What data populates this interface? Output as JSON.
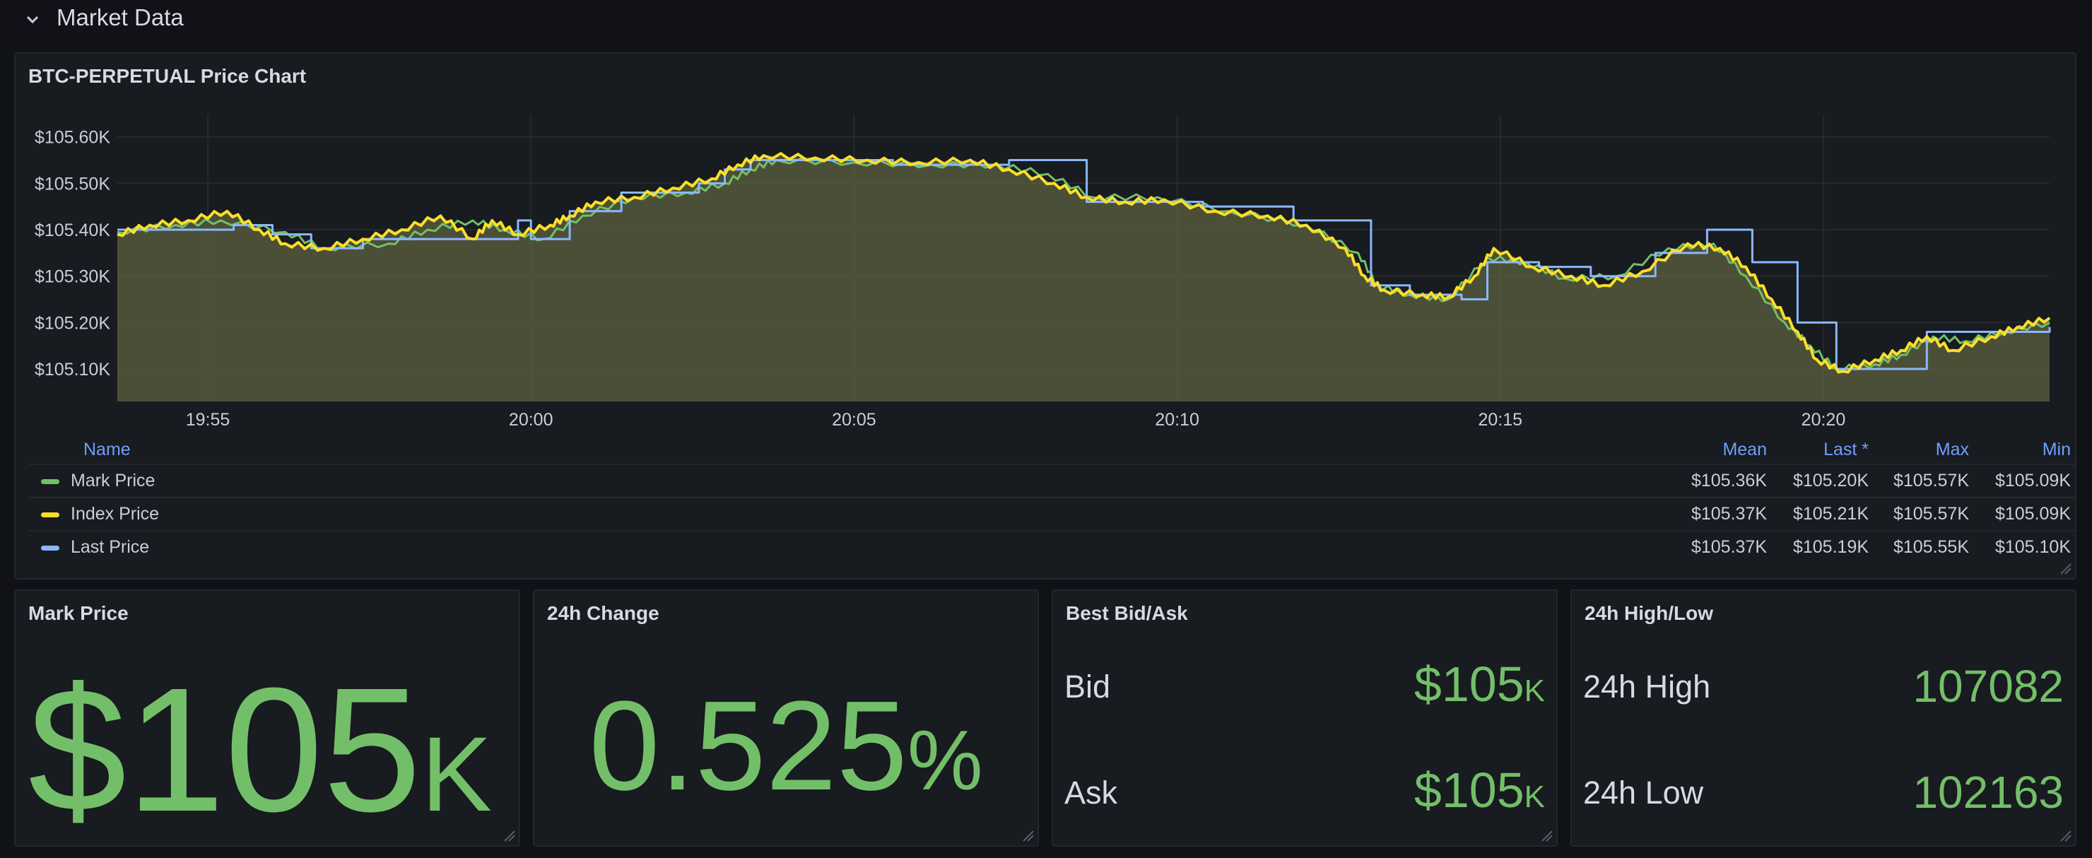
{
  "row": {
    "title": "Market Data"
  },
  "chart_panel": {
    "title": "BTC-PERPETUAL Price Chart"
  },
  "chart_data": {
    "type": "line",
    "x_ticks": [
      "19:55",
      "20:00",
      "20:05",
      "20:10",
      "20:15",
      "20:20"
    ],
    "y_ticks": [
      "$105.10K",
      "$105.20K",
      "$105.30K",
      "$105.40K",
      "$105.50K",
      "$105.60K"
    ],
    "ylim": [
      105030,
      105630
    ],
    "xlim_minutes": [
      -6.4,
      23.5
    ],
    "grid": true,
    "legend_placement": "bottom",
    "series": [
      {
        "name": "Mark Price",
        "color": "#73bf69",
        "points": [
          [
            -6.4,
            105395
          ],
          [
            -5.5,
            105410
          ],
          [
            -4.8,
            105420
          ],
          [
            -3.8,
            105395
          ],
          [
            -3.2,
            105360
          ],
          [
            -2.2,
            105370
          ],
          [
            -1.6,
            105400
          ],
          [
            -0.9,
            105420
          ],
          [
            -0.4,
            105400
          ],
          [
            0.2,
            105380
          ],
          [
            0.8,
            105430
          ],
          [
            1.6,
            105470
          ],
          [
            2.4,
            105480
          ],
          [
            3.0,
            105500
          ],
          [
            3.4,
            105530
          ],
          [
            3.8,
            105550
          ],
          [
            5.0,
            105545
          ],
          [
            6.2,
            105540
          ],
          [
            7.2,
            105540
          ],
          [
            8.0,
            105520
          ],
          [
            8.7,
            105470
          ],
          [
            9.7,
            105470
          ],
          [
            10.8,
            105440
          ],
          [
            12.0,
            105410
          ],
          [
            12.8,
            105350
          ],
          [
            13.1,
            105280
          ],
          [
            13.6,
            105260
          ],
          [
            14.2,
            105250
          ],
          [
            14.8,
            105340
          ],
          [
            15.4,
            105330
          ],
          [
            16.0,
            105295
          ],
          [
            16.8,
            105300
          ],
          [
            17.6,
            105360
          ],
          [
            18.3,
            105370
          ],
          [
            18.8,
            105300
          ],
          [
            19.4,
            105200
          ],
          [
            19.8,
            105150
          ],
          [
            20.2,
            105100
          ],
          [
            20.8,
            105110
          ],
          [
            21.2,
            105130
          ],
          [
            21.7,
            105170
          ],
          [
            22.2,
            105160
          ],
          [
            22.8,
            105180
          ],
          [
            23.5,
            105200
          ]
        ]
      },
      {
        "name": "Index Price",
        "color": "#fade2a",
        "points": [
          [
            -6.4,
            105390
          ],
          [
            -5.9,
            105410
          ],
          [
            -5.3,
            105420
          ],
          [
            -4.7,
            105440
          ],
          [
            -4.2,
            105400
          ],
          [
            -3.8,
            105370
          ],
          [
            -3.2,
            105360
          ],
          [
            -2.6,
            105380
          ],
          [
            -2.0,
            105400
          ],
          [
            -1.4,
            105430
          ],
          [
            -0.9,
            105380
          ],
          [
            -0.6,
            105420
          ],
          [
            -0.2,
            105390
          ],
          [
            0.3,
            105410
          ],
          [
            0.6,
            105430
          ],
          [
            1.0,
            105460
          ],
          [
            1.6,
            105470
          ],
          [
            2.2,
            105490
          ],
          [
            2.8,
            105510
          ],
          [
            3.2,
            105540
          ],
          [
            3.6,
            105560
          ],
          [
            4.4,
            105555
          ],
          [
            5.2,
            105550
          ],
          [
            6.0,
            105545
          ],
          [
            6.8,
            105550
          ],
          [
            7.4,
            105530
          ],
          [
            8.1,
            105500
          ],
          [
            8.6,
            105470
          ],
          [
            9.2,
            105460
          ],
          [
            9.8,
            105465
          ],
          [
            10.6,
            105440
          ],
          [
            11.4,
            105430
          ],
          [
            12.0,
            105410
          ],
          [
            12.6,
            105360
          ],
          [
            12.9,
            105300
          ],
          [
            13.2,
            105270
          ],
          [
            13.8,
            105260
          ],
          [
            14.2,
            105255
          ],
          [
            14.6,
            105300
          ],
          [
            14.9,
            105360
          ],
          [
            15.5,
            105320
          ],
          [
            16.1,
            105300
          ],
          [
            16.6,
            105280
          ],
          [
            17.2,
            105310
          ],
          [
            17.9,
            105370
          ],
          [
            18.4,
            105360
          ],
          [
            18.8,
            105320
          ],
          [
            19.2,
            105250
          ],
          [
            19.6,
            105180
          ],
          [
            19.9,
            105120
          ],
          [
            20.3,
            105095
          ],
          [
            20.8,
            105120
          ],
          [
            21.2,
            105140
          ],
          [
            21.6,
            105170
          ],
          [
            22.0,
            105140
          ],
          [
            22.6,
            105170
          ],
          [
            23.0,
            105190
          ],
          [
            23.5,
            105210
          ]
        ]
      },
      {
        "name": "Last Price",
        "color": "#8ab8ff",
        "points": [
          [
            -6.4,
            105400
          ],
          [
            -4.6,
            105410
          ],
          [
            -4.0,
            105390
          ],
          [
            -3.4,
            105360
          ],
          [
            -2.6,
            105380
          ],
          [
            -0.2,
            105420
          ],
          [
            0.0,
            105380
          ],
          [
            0.6,
            105440
          ],
          [
            1.4,
            105480
          ],
          [
            2.6,
            105500
          ],
          [
            3.0,
            105530
          ],
          [
            3.4,
            105550
          ],
          [
            5.6,
            105540
          ],
          [
            7.4,
            105550
          ],
          [
            8.6,
            105460
          ],
          [
            10.4,
            105450
          ],
          [
            11.8,
            105420
          ],
          [
            13.0,
            105280
          ],
          [
            13.6,
            105260
          ],
          [
            14.4,
            105250
          ],
          [
            14.8,
            105330
          ],
          [
            15.6,
            105320
          ],
          [
            16.4,
            105300
          ],
          [
            17.4,
            105350
          ],
          [
            18.2,
            105400
          ],
          [
            18.9,
            105330
          ],
          [
            19.6,
            105200
          ],
          [
            20.2,
            105100
          ],
          [
            20.8,
            105100
          ],
          [
            21.6,
            105180
          ],
          [
            22.4,
            105180
          ],
          [
            23.5,
            105190
          ]
        ]
      }
    ]
  },
  "legend": {
    "headers": {
      "name": "Name",
      "mean": "Mean",
      "last": "Last *",
      "max": "Max",
      "min": "Min"
    },
    "rows": [
      {
        "name": "Mark Price",
        "color": "#73bf69",
        "mean": "$105.36K",
        "last": "$105.20K",
        "max": "$105.57K",
        "min": "$105.09K"
      },
      {
        "name": "Index Price",
        "color": "#fade2a",
        "mean": "$105.37K",
        "last": "$105.21K",
        "max": "$105.57K",
        "min": "$105.09K"
      },
      {
        "name": "Last Price",
        "color": "#8ab8ff",
        "mean": "$105.37K",
        "last": "$105.19K",
        "max": "$105.55K",
        "min": "$105.10K"
      }
    ]
  },
  "stats": {
    "mark_price": {
      "title": "Mark Price",
      "value": "$105",
      "unit": "K"
    },
    "change_24h": {
      "title": "24h Change",
      "value": "0.525",
      "unit": "%"
    },
    "bid_ask": {
      "title": "Best Bid/Ask",
      "bid_label": "Bid",
      "bid_value": "$105",
      "bid_unit": "K",
      "ask_label": "Ask",
      "ask_value": "$105",
      "ask_unit": "K"
    },
    "high_low": {
      "title": "24h High/Low",
      "high_label": "24h High",
      "high_value": "107082",
      "low_label": "24h Low",
      "low_value": "102163"
    }
  },
  "colors": {
    "value_green": "#73bf69",
    "legend_header": "#6e9fff",
    "background": "#111217",
    "panel": "#181b1f"
  }
}
